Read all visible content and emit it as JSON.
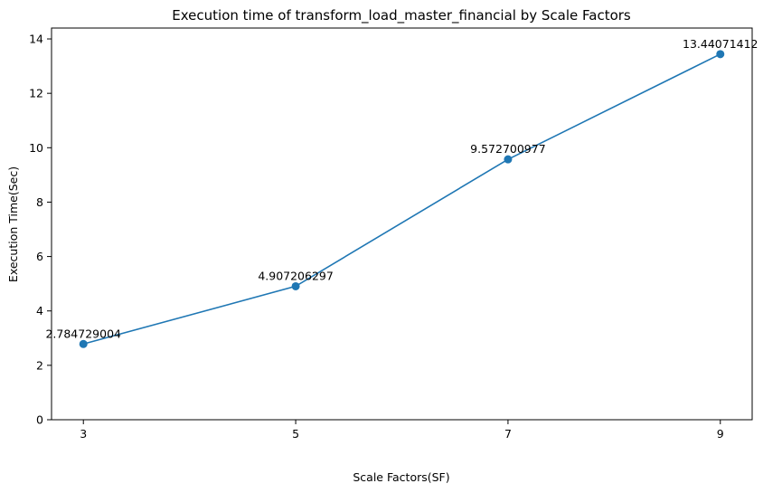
{
  "chart_data": {
    "type": "line",
    "title": "Execution time of transform_load_master_financial by Scale Factors",
    "xlabel": "Scale Factors(SF)",
    "ylabel": "Execution Time(Sec)",
    "x": [
      3,
      5,
      7,
      9
    ],
    "x_ticks": [
      "3",
      "5",
      "7",
      "9"
    ],
    "y_ticks": [
      "0",
      "2",
      "4",
      "6",
      "8",
      "10",
      "12",
      "14"
    ],
    "xlim": [
      2.7,
      9.3
    ],
    "ylim": [
      0,
      14.4
    ],
    "series": [
      {
        "values": [
          2.784729004,
          4.907206297,
          9.572700977,
          13.44071412
        ],
        "labels": [
          "2.784729004",
          "4.907206297",
          "9.572700977",
          "13.44071412"
        ],
        "color": "#1f77b4",
        "marker": "circle"
      }
    ],
    "grid": false,
    "legend": "none"
  }
}
